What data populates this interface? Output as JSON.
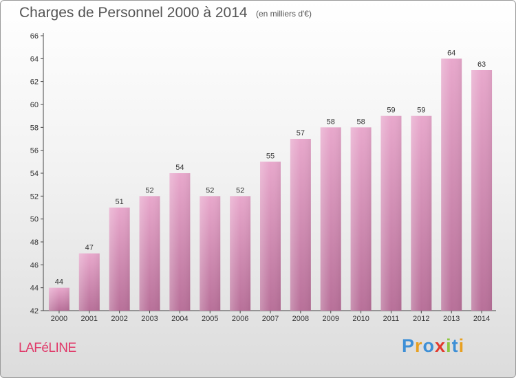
{
  "title": "Charges de Personnel 2000 à 2014",
  "subtitle": "(en milliers d'€)",
  "location": "LAFéLINE",
  "logo": {
    "text": "Proxiti",
    "letters": [
      {
        "ch": "P",
        "color": "#3d8fd6"
      },
      {
        "ch": "r",
        "color": "#e8a020"
      },
      {
        "ch": "o",
        "color": "#3d8fd6"
      },
      {
        "ch": "x",
        "color": "#e23a2e"
      },
      {
        "ch": "i",
        "color": "#8dc63f"
      },
      {
        "ch": "t",
        "color": "#3d8fd6"
      },
      {
        "ch": "i",
        "color": "#e8a020"
      }
    ]
  },
  "colors": {
    "bar_top": "#e8a8cc",
    "bar_bottom": "#b87099",
    "title": "#555555",
    "location": "#e03a6a"
  },
  "chart_data": {
    "type": "bar",
    "title": "Charges de Personnel 2000 à 2014",
    "subtitle": "(en milliers d'€)",
    "categories": [
      "2000",
      "2001",
      "2002",
      "2003",
      "2004",
      "2005",
      "2006",
      "2007",
      "2008",
      "2009",
      "2010",
      "2011",
      "2012",
      "2013",
      "2014"
    ],
    "values": [
      44,
      47,
      51,
      52,
      54,
      52,
      52,
      55,
      57,
      58,
      58,
      59,
      59,
      64,
      63
    ],
    "ylim": [
      42,
      66
    ],
    "yticks": [
      42,
      44,
      46,
      48,
      50,
      52,
      54,
      56,
      58,
      60,
      62,
      64,
      66
    ],
    "grid": false,
    "legend": "none"
  }
}
